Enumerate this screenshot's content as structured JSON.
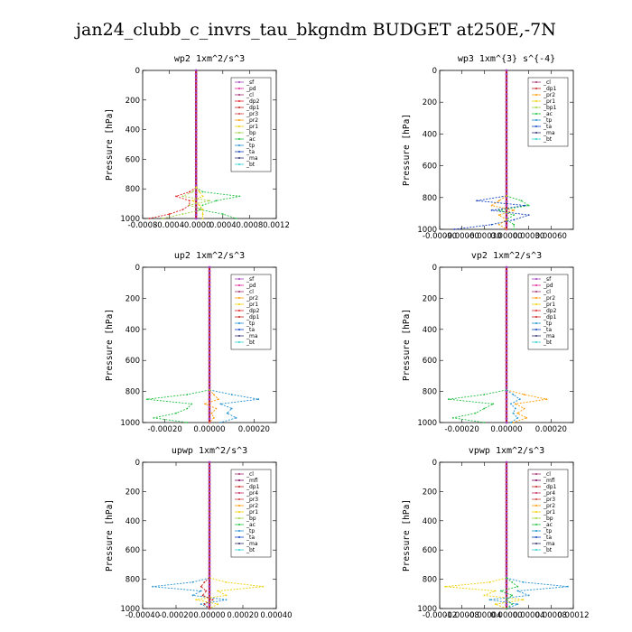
{
  "page_title": "jan24_clubb_c_invrs_tau_bkgndm  BUDGET at250E,-7N",
  "colors": {
    "sf": "#a040c0",
    "pd": "#e0209a",
    "cl": "#a03070",
    "dp2": "#e02020",
    "pr3": "#d04040",
    "pr2": "#ff9a00",
    "pr1": "#f0d000",
    "bp": "#a0d040",
    "ac": "#20c040",
    "tp": "#2090d0",
    "ta": "#1040c0",
    "ma": "#303070",
    "bt": "#30d0d0",
    "dp1": "#c02020",
    "mfl": "#800060",
    "pr4": "#c03060",
    "budget": "#c01010"
  },
  "chart_data": [
    {
      "type": "line",
      "title": "wp2   1xm^2/s^3",
      "ylabel": "Pressure [hPa]",
      "xlim": [
        -0.0008,
        0.0012
      ],
      "ylim": [
        1000,
        0
      ],
      "xticks": [
        -0.0008,
        -0.0004,
        0,
        0.0004,
        0.0008,
        0.0012
      ],
      "xtick_labels": [
        "-0.0008",
        "-0.0004",
        "-0.0000",
        "0.0004",
        "0.0008",
        "0.0012"
      ],
      "yticks": [
        0,
        200,
        400,
        600,
        800,
        1000
      ],
      "legend": [
        "_sf",
        "_pd",
        "_cl",
        "_dp2",
        "_dp1",
        "_pr3",
        "_pr2",
        "_pr1",
        "_bp",
        "_ac",
        "_tp",
        "_ta",
        "_ma",
        "_bt"
      ],
      "legend_placement": "top-right",
      "levels": [
        790,
        820,
        850,
        880,
        910,
        940,
        970,
        1000
      ],
      "series": [
        {
          "key": "ac",
          "values": [
            0,
            0.0001,
            0.00065,
            0.0003,
            0.0001,
            5e-05,
            0.0004,
            0.0006
          ]
        },
        {
          "key": "dp2",
          "values": [
            0,
            -0.0001,
            -0.0003,
            -0.0001,
            -0.0001,
            -0.0002,
            -0.0004,
            -0.0007
          ]
        },
        {
          "key": "bp",
          "values": [
            0,
            -5e-05,
            -0.0002,
            0.0002,
            -0.0001,
            0.0001,
            -0.0002,
            -0.0005
          ]
        },
        {
          "key": "pr1",
          "values": [
            0,
            5e-05,
            0.0001,
            -5e-05,
            5e-05,
            0.0001,
            0.0001,
            0.0001
          ]
        }
      ]
    },
    {
      "type": "line",
      "title": "wp3   1xm^{3} s^{-4}",
      "ylabel": "Pressure [hPa]",
      "xlim": [
        -0.0009,
        0.0009
      ],
      "ylim": [
        1000,
        0
      ],
      "xticks": [
        -0.0009,
        -0.0006,
        -0.0003,
        0,
        0.0003,
        0.0006
      ],
      "xtick_labels": [
        "-0.00090",
        "-0.00060",
        "-0.00030",
        "0.00000",
        "0.00030",
        "0.00060"
      ],
      "yticks": [
        0,
        200,
        400,
        600,
        800,
        1000
      ],
      "legend": [
        "_cl",
        "_dp1",
        "_pr2",
        "_pr1",
        "_bp1",
        "_ac",
        "_tp",
        "_ta",
        "_ma",
        "_bt"
      ],
      "legend_placement": "top-right",
      "levels": [
        790,
        820,
        850,
        880,
        910,
        940,
        970,
        1000
      ],
      "series": [
        {
          "key": "ta",
          "values": [
            0,
            -0.0004,
            0.00025,
            -0.0002,
            0.0003,
            0.0001,
            -0.0002,
            -0.0007
          ]
        },
        {
          "key": "ac",
          "values": [
            0,
            0.0002,
            0.0003,
            -0.0001,
            0.0001,
            0,
            0.0001,
            0.0001
          ]
        },
        {
          "key": "pr2",
          "values": [
            0,
            -0.0001,
            -0.0002,
            0.0001,
            -0.0001,
            0,
            -0.0001,
            0
          ]
        }
      ]
    },
    {
      "type": "line",
      "title": "up2   1xm^2/s^3",
      "ylabel": "Pressure [hPa]",
      "xlim": [
        -0.0003,
        0.0003
      ],
      "ylim": [
        1000,
        0
      ],
      "xticks": [
        -0.0002,
        0,
        0.0002
      ],
      "xtick_labels": [
        "-0.00020",
        "0.00000",
        "0.00020"
      ],
      "yticks": [
        0,
        200,
        400,
        600,
        800,
        1000
      ],
      "legend": [
        "_sf",
        "_pd",
        "_cl",
        "_pr2",
        "_pr1",
        "_dp2",
        "_dp1",
        "_tp",
        "_ta",
        "_ma",
        "_bt"
      ],
      "legend_placement": "top-right",
      "levels": [
        790,
        820,
        850,
        880,
        910,
        940,
        970,
        1000
      ],
      "series": [
        {
          "key": "ac",
          "values": [
            0,
            -0.0001,
            -0.00028,
            -8e-05,
            -0.0001,
            -0.00015,
            -0.00025,
            -0.0001
          ]
        },
        {
          "key": "tp",
          "values": [
            0,
            0.0001,
            0.00022,
            5e-05,
            0.0001,
            8e-05,
            0.00012,
            5e-05
          ]
        },
        {
          "key": "pr2",
          "values": [
            0,
            2e-05,
            4e-05,
            -2e-05,
            3e-05,
            1e-05,
            2e-05,
            0
          ]
        }
      ]
    },
    {
      "type": "line",
      "title": "vp2   1xm^2/s^3",
      "ylabel": "Pressure [hPa]",
      "xlim": [
        -0.0003,
        0.0003
      ],
      "ylim": [
        1000,
        0
      ],
      "xticks": [
        -0.0002,
        0,
        0.0002
      ],
      "xtick_labels": [
        "-0.00020",
        "0.00000",
        "0.00020"
      ],
      "yticks": [
        0,
        200,
        400,
        600,
        800,
        1000
      ],
      "legend": [
        "_sf",
        "_pd",
        "_cl",
        "_pr2",
        "_pr1",
        "_dp2",
        "_dp1",
        "_tp",
        "_ta",
        "_ma",
        "_bt"
      ],
      "legend_placement": "top-right",
      "levels": [
        790,
        820,
        850,
        880,
        910,
        940,
        970,
        1000
      ],
      "series": [
        {
          "key": "ac",
          "values": [
            0,
            -0.0001,
            -0.00026,
            -6e-05,
            -0.0001,
            -0.00014,
            -0.00024,
            -0.0001
          ]
        },
        {
          "key": "pr2",
          "values": [
            0,
            8e-05,
            0.00018,
            4e-05,
            8e-05,
            5e-05,
            9e-05,
            3e-05
          ]
        },
        {
          "key": "tp",
          "values": [
            0,
            3e-05,
            6e-05,
            2e-05,
            4e-05,
            3e-05,
            5e-05,
            2e-05
          ]
        }
      ]
    },
    {
      "type": "line",
      "title": "upwp   1xm^2/s^3",
      "ylabel": "Pressure [hPa]",
      "xlim": [
        -0.0004,
        0.0004
      ],
      "ylim": [
        1000,
        0
      ],
      "xticks": [
        -0.0004,
        -0.0002,
        0,
        0.0002,
        0.0004
      ],
      "xtick_labels": [
        "-0.00040",
        "-0.00020",
        "0.00000",
        "0.00020",
        "0.00040"
      ],
      "yticks": [
        0,
        200,
        400,
        600,
        800,
        1000
      ],
      "legend": [
        "_cl",
        "_mfl",
        "_dp1",
        "_pr4",
        "_pr3",
        "_pr2",
        "_pr1",
        "_bp",
        "_ac",
        "_tp",
        "_ta",
        "_ma",
        "_bt"
      ],
      "legend_placement": "top-right",
      "levels": [
        790,
        820,
        850,
        880,
        910,
        940,
        970,
        1000
      ],
      "series": [
        {
          "key": "tp",
          "values": [
            0,
            -0.0001,
            -0.00034,
            -5e-05,
            -0.0001,
            0.0001,
            -5e-05,
            0
          ]
        },
        {
          "key": "pr1",
          "values": [
            0,
            0.0001,
            0.00032,
            5e-05,
            0.0001,
            -8e-05,
            5e-05,
            0
          ]
        },
        {
          "key": "dp1",
          "values": [
            0,
            -3e-05,
            -5e-05,
            -2e-05,
            -4e-05,
            2e-05,
            -3e-05,
            0
          ]
        }
      ]
    },
    {
      "type": "line",
      "title": "vpwp   1xm^2/s^3",
      "ylabel": "Pressure [hPa]",
      "xlim": [
        -0.00012,
        0.00012
      ],
      "ylim": [
        1000,
        0
      ],
      "xticks": [
        -0.00012,
        -8e-05,
        -4e-05,
        0,
        4e-05,
        8e-05,
        0.00012
      ],
      "xtick_labels": [
        "-0.00012",
        "-0.00008",
        "-0.00004",
        "0.00000",
        "0.00004",
        "0.00008",
        "0.00012"
      ],
      "yticks": [
        0,
        200,
        400,
        600,
        800,
        1000
      ],
      "legend": [
        "_cl",
        "_mfl",
        "_dp1",
        "_pr4",
        "_pr3",
        "_pr2",
        "_pr1",
        "_bp",
        "_ac",
        "_tp",
        "_ta",
        "_ma",
        "_bt"
      ],
      "legend_placement": "top-right",
      "levels": [
        790,
        820,
        850,
        880,
        910,
        940,
        970,
        1000
      ],
      "series": [
        {
          "key": "pr1",
          "values": [
            0,
            -3e-05,
            -0.00011,
            -2e-05,
            -4e-05,
            3e-05,
            -2e-05,
            0
          ]
        },
        {
          "key": "tp",
          "values": [
            0,
            3e-05,
            0.00011,
            2e-05,
            4e-05,
            -3e-05,
            2e-05,
            0
          ]
        },
        {
          "key": "ac",
          "values": [
            0,
            1e-05,
            2e-05,
            -1e-05,
            1e-05,
            0,
            1e-05,
            0
          ]
        }
      ]
    }
  ]
}
